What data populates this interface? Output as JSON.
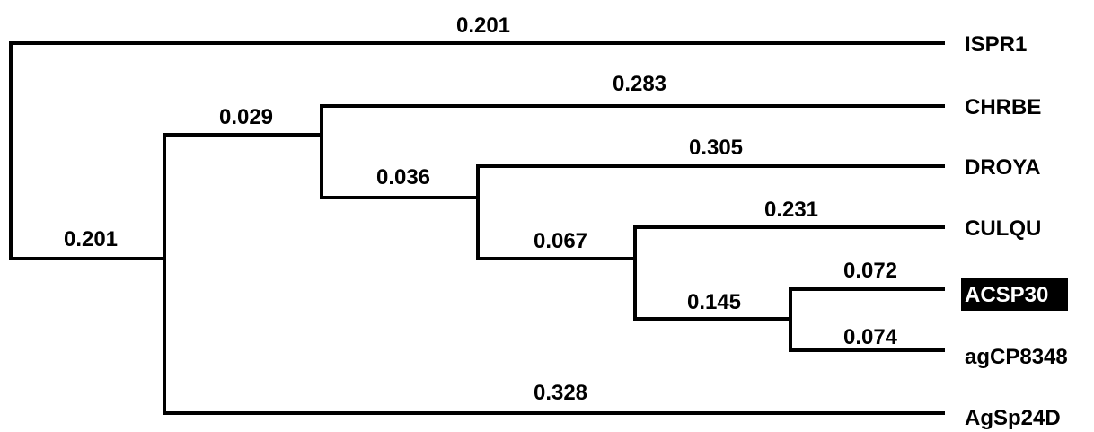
{
  "tree": {
    "leaves": [
      {
        "id": "ispr1",
        "label": "ISPR1",
        "highlighted": false
      },
      {
        "id": "chrbe",
        "label": "CHRBE",
        "highlighted": false
      },
      {
        "id": "droya",
        "label": "DROYA",
        "highlighted": false
      },
      {
        "id": "culqu",
        "label": "CULQU",
        "highlighted": false
      },
      {
        "id": "acsp30",
        "label": "ACSP30",
        "highlighted": true
      },
      {
        "id": "agcp8348",
        "label": "agCP8348",
        "highlighted": false
      },
      {
        "id": "agsp24d",
        "label": "AgSp24D",
        "highlighted": false
      }
    ],
    "branch_lengths": {
      "root_to_ispr1": "0.201",
      "root_to_ingroup": "0.201",
      "ingroup_to_n2": "0.029",
      "n2_to_chrbe": "0.283",
      "n2_to_n3": "0.036",
      "n3_to_droya": "0.305",
      "n3_to_n4": "0.067",
      "n4_to_culqu": "0.231",
      "n4_to_n5": "0.145",
      "n5_to_acsp30": "0.072",
      "n5_to_agcp8348": "0.074",
      "ingroup_to_agsp24d": "0.328"
    },
    "colors": {
      "line": "#000000",
      "highlight_bg": "#000000",
      "highlight_text": "#ffffff"
    }
  }
}
